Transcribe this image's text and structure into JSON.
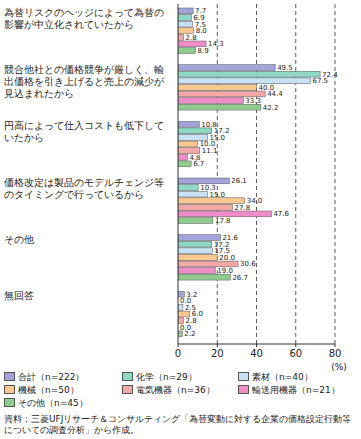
{
  "chart_data": {
    "type": "bar",
    "orientation": "horizontal",
    "categories": [
      "為替リスクのヘッジによって為替の影響が中立化されていたから",
      "競合他社との価格競争が厳しく、輸出価格を引き上げると売上の減少が見込まれたから",
      "円高によって仕入コストも低下していたから",
      "価格改定は製品のモデルチェンジ等のタイミングで行っているから",
      "その他",
      "無回答"
    ],
    "series": [
      {
        "name": "合計（n=222）",
        "color": "#a4a4dc",
        "values": [
          7.7,
          49.5,
          10.8,
          26.1,
          21.6,
          3.2
        ],
        "value_labels": [
          "7.7",
          "49.5",
          "10.8",
          "26.1",
          "21.6",
          "3.2"
        ]
      },
      {
        "name": "化学（n=29）",
        "color": "#8ed8c6",
        "values": [
          6.9,
          72.4,
          17.2,
          10.3,
          17.2,
          0.0
        ],
        "value_labels": [
          "6.9",
          "72.4",
          "17.2",
          "10.3",
          "17.2",
          "0.0"
        ]
      },
      {
        "name": "素材（n=40）",
        "color": "#c6e2f4",
        "values": [
          7.5,
          67.5,
          15.0,
          15.0,
          17.5,
          2.5
        ],
        "value_labels": [
          "7.5",
          "67.5",
          "15.0",
          "15.0",
          "17.5",
          "2.5"
        ]
      },
      {
        "name": "機械（n=50）",
        "color": "#f8c890",
        "values": [
          8.0,
          40.0,
          10.0,
          34.0,
          20.0,
          6.0
        ],
        "value_labels": [
          "8.0",
          "40.0",
          "10.0",
          "34.0",
          "20.0",
          "6.0"
        ]
      },
      {
        "name": "電気機器（n=36）",
        "color": "#f4a8a8",
        "values": [
          2.8,
          44.4,
          11.1,
          27.8,
          30.6,
          2.8
        ],
        "value_labels": [
          "2.8",
          "44.4",
          "11.1",
          "27.8",
          "30.6",
          "2.8"
        ]
      },
      {
        "name": "輸送用機器（n=21）",
        "color": "#f08cc8",
        "values": [
          14.3,
          33.3,
          4.8,
          47.6,
          19.0,
          0.0
        ],
        "value_labels": [
          "14.3",
          "33.3",
          "4.8",
          "47.6",
          "19.0",
          "0.0"
        ]
      },
      {
        "name": "その他（n=45）",
        "color": "#90cc90",
        "values": [
          8.9,
          42.2,
          6.7,
          17.8,
          26.7,
          2.2
        ],
        "value_labels": [
          "8.9",
          "42.2",
          "6.7",
          "17.8",
          "26.7",
          "2.2"
        ]
      }
    ],
    "xlim": [
      0,
      80
    ],
    "xticks": [
      0,
      20,
      40,
      60,
      80
    ],
    "x_label": "(%)",
    "grid": true,
    "data_labels": true,
    "legend": "bottom",
    "note": "資料：三菱UFJリサーチ＆コンサルティング「為替変動に対する企業の価格設定行動等についての調査分析」から作成。"
  }
}
